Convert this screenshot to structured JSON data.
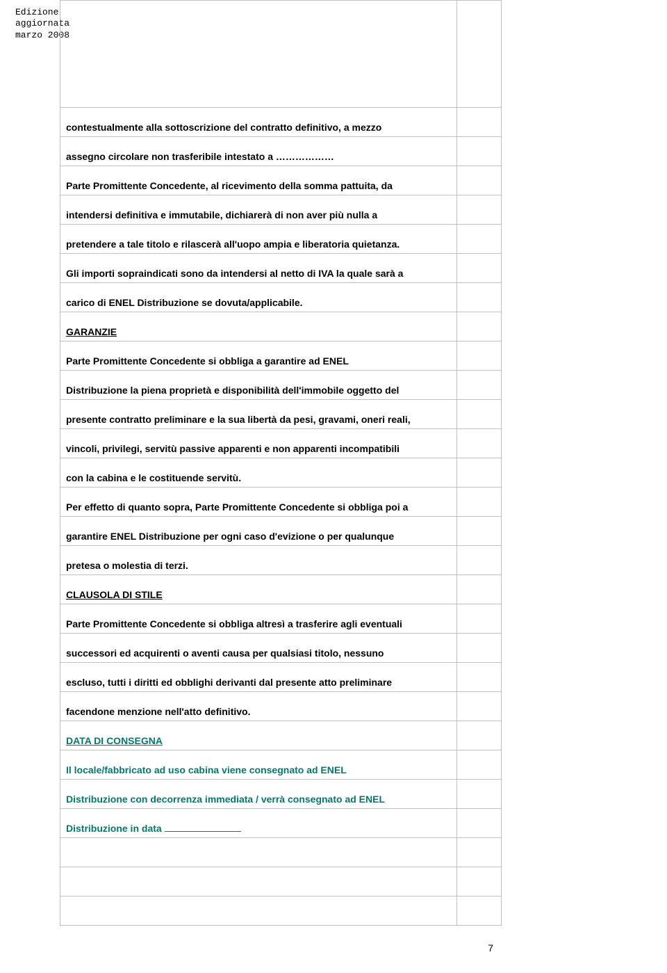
{
  "edition": {
    "line1": "Edizione",
    "line2": "aggiornata",
    "line3": "marzo 2008"
  },
  "lines": [
    "contestualmente alla sottoscrizione del contratto definitivo, a mezzo",
    "assegno circolare non trasferibile intestato a ………………",
    "Parte Promittente Concedente, al ricevimento della somma pattuita, da",
    "intendersi definitiva e immutabile, dichiarerà di non aver più nulla a",
    "pretendere a tale titolo e rilascerà all'uopo ampia e liberatoria quietanza.",
    "Gli importi sopraindicati sono da intendersi al netto di IVA la quale sarà a",
    "carico di ENEL Distribuzione se dovuta/applicabile.",
    "GARANZIE",
    "Parte Promittente Concedente si obbliga a garantire ad ENEL",
    "Distribuzione la piena proprietà e disponibilità dell'immobile oggetto del",
    "presente contratto preliminare e la sua libertà da pesi, gravami, oneri reali,",
    "vincoli, privilegi, servitù passive apparenti e non apparenti incompatibili",
    "con la cabina e le costituende servitù.",
    "Per effetto di quanto sopra, Parte Promittente Concedente si obbliga poi a",
    "garantire ENEL Distribuzione per ogni caso d'evizione o per qualunque",
    "pretesa o molestia di terzi.",
    "CLAUSOLA DI STILE",
    "Parte Promittente Concedente si obbliga altresì a trasferire agli eventuali",
    "successori ed acquirenti o aventi causa per qualsiasi titolo, nessuno",
    "escluso, tutti i diritti ed obblighi derivanti dal presente atto preliminare",
    "facendone menzione nell'atto definitivo.",
    "DATA DI CONSEGNA",
    "Il locale/fabbricato ad uso cabina viene consegnato ad ENEL",
    "Distribuzione con decorrenza immediata / verrà consegnato ad ENEL",
    "Distribuzione in data "
  ],
  "styles": {
    "underlined": [
      7,
      16,
      21
    ],
    "teal": [
      21,
      22,
      23,
      24
    ],
    "blankline_after_24": true
  },
  "colors": {
    "text": "#000000",
    "teal": "#007a6e",
    "border": "#bfbfbf",
    "background": "#ffffff"
  },
  "typography": {
    "body_font": "Arial, Helvetica, sans-serif",
    "body_size_pt": 11,
    "body_weight": "bold",
    "edition_font": "Courier New, monospace",
    "edition_size_pt": 10
  },
  "page_number": "7"
}
